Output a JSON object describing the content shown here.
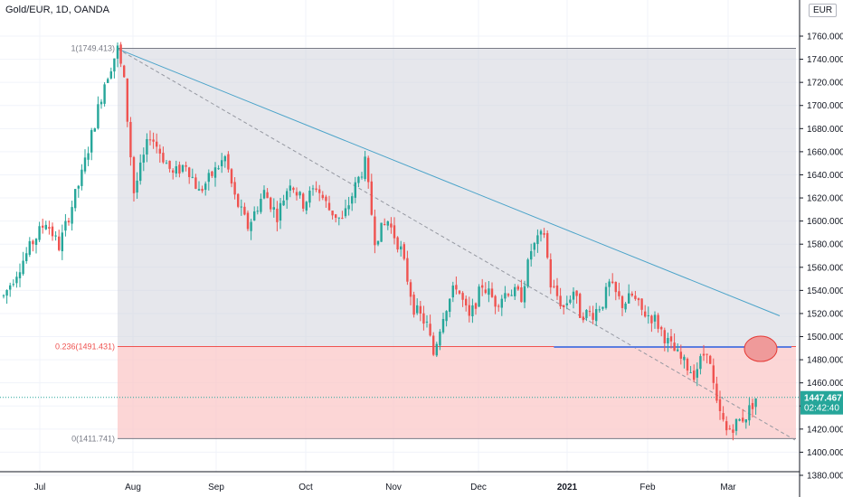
{
  "header": {
    "symbol": "Gold/EUR, 1D, OANDA",
    "currency": "EUR"
  },
  "price_badge": {
    "price": "1447.467",
    "countdown": "02:42:40",
    "color": "#26a69a"
  },
  "fib": {
    "levels": [
      {
        "label": "1(1749.413)",
        "value": 1749.413
      },
      {
        "label": "0.236(1491.431)",
        "value": 1491.431
      },
      {
        "label": "0(1411.741)",
        "value": 1411.741
      }
    ],
    "upper_zone_color": "#d1d4dc",
    "lower_zone_color": "#fbc8c8"
  },
  "colors": {
    "up": "#26a69a",
    "down": "#ef5350",
    "trendline": "#4aa3c9",
    "support": "#5b7ee0"
  },
  "chart_data": {
    "type": "candlestick",
    "yaxis": {
      "min": 1380,
      "max": 1780,
      "ticks": [
        "1380.000",
        "1400.000",
        "1420.000",
        "1440.000",
        "1460.000",
        "1480.000",
        "1500.000",
        "1520.000",
        "1540.000",
        "1560.000",
        "1580.000",
        "1600.000",
        "1620.000",
        "1640.000",
        "1660.000",
        "1680.000",
        "1700.000",
        "1720.000",
        "1740.000",
        "1760.000"
      ]
    },
    "xaxis": {
      "labels": [
        "Jul",
        "Aug",
        "Sep",
        "Oct",
        "Nov",
        "Dec",
        "2021",
        "Feb",
        "Mar"
      ]
    },
    "keypoints": [
      [
        0,
        1535
      ],
      [
        9,
        1582
      ],
      [
        13,
        1600
      ],
      [
        17,
        1578
      ],
      [
        24,
        1640
      ],
      [
        31,
        1720
      ],
      [
        35,
        1749
      ],
      [
        37,
        1720
      ],
      [
        40,
        1625
      ],
      [
        45,
        1675
      ],
      [
        52,
        1640
      ],
      [
        56,
        1650
      ],
      [
        60,
        1625
      ],
      [
        64,
        1640
      ],
      [
        68,
        1655
      ],
      [
        71,
        1620
      ],
      [
        75,
        1595
      ],
      [
        80,
        1625
      ],
      [
        84,
        1605
      ],
      [
        88,
        1635
      ],
      [
        92,
        1615
      ],
      [
        96,
        1630
      ],
      [
        100,
        1610
      ],
      [
        104,
        1600
      ],
      [
        108,
        1630
      ],
      [
        111,
        1650
      ],
      [
        114,
        1585
      ],
      [
        118,
        1600
      ],
      [
        122,
        1575
      ],
      [
        126,
        1525
      ],
      [
        130,
        1510
      ],
      [
        132,
        1485
      ],
      [
        135,
        1520
      ],
      [
        139,
        1545
      ],
      [
        143,
        1515
      ],
      [
        147,
        1545
      ],
      [
        151,
        1530
      ],
      [
        155,
        1540
      ],
      [
        159,
        1535
      ],
      [
        162,
        1575
      ],
      [
        166,
        1590
      ],
      [
        168,
        1545
      ],
      [
        172,
        1525
      ],
      [
        175,
        1540
      ],
      [
        177,
        1520
      ],
      [
        181,
        1520
      ],
      [
        184,
        1530
      ],
      [
        186,
        1545
      ],
      [
        190,
        1528
      ],
      [
        193,
        1535
      ],
      [
        196,
        1522
      ],
      [
        200,
        1515
      ],
      [
        204,
        1495
      ],
      [
        208,
        1480
      ],
      [
        212,
        1468
      ],
      [
        216,
        1490
      ],
      [
        219,
        1440
      ],
      [
        222,
        1418
      ],
      [
        225,
        1425
      ],
      [
        228,
        1432
      ],
      [
        231,
        1447
      ]
    ]
  }
}
